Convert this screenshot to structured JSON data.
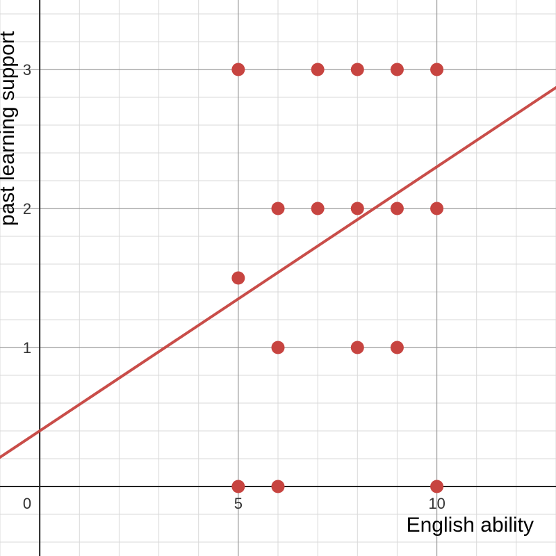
{
  "chart_data": {
    "type": "scatter",
    "xlabel": "English ability",
    "ylabel": "past learning support",
    "xlim": [
      -1,
      13
    ],
    "ylim": [
      -0.5,
      3.5
    ],
    "x_ticks": [
      5,
      10
    ],
    "y_ticks": [
      1,
      2,
      3
    ],
    "origin_label": "0",
    "grid": true,
    "minor_grid_step_x": 1,
    "minor_grid_step_y": 0.2,
    "major_grid_step_x": 5,
    "major_grid_step_y": 1,
    "colors": {
      "points": "#c74440",
      "trendline": "#c74440",
      "grid_minor": "#d9d9d9",
      "grid_major": "#999999",
      "axis": "#222222"
    },
    "points": [
      {
        "x": 5,
        "y": 3
      },
      {
        "x": 7,
        "y": 3
      },
      {
        "x": 8,
        "y": 3
      },
      {
        "x": 9,
        "y": 3
      },
      {
        "x": 10,
        "y": 3
      },
      {
        "x": 6,
        "y": 2
      },
      {
        "x": 7,
        "y": 2
      },
      {
        "x": 8,
        "y": 2
      },
      {
        "x": 9,
        "y": 2
      },
      {
        "x": 10,
        "y": 2
      },
      {
        "x": 5,
        "y": 1.5
      },
      {
        "x": 6,
        "y": 1
      },
      {
        "x": 8,
        "y": 1
      },
      {
        "x": 9,
        "y": 1
      },
      {
        "x": 5,
        "y": 0
      },
      {
        "x": 6,
        "y": 0
      },
      {
        "x": 10,
        "y": 0
      }
    ],
    "trendline": {
      "slope": 0.19,
      "intercept": 0.4
    }
  }
}
